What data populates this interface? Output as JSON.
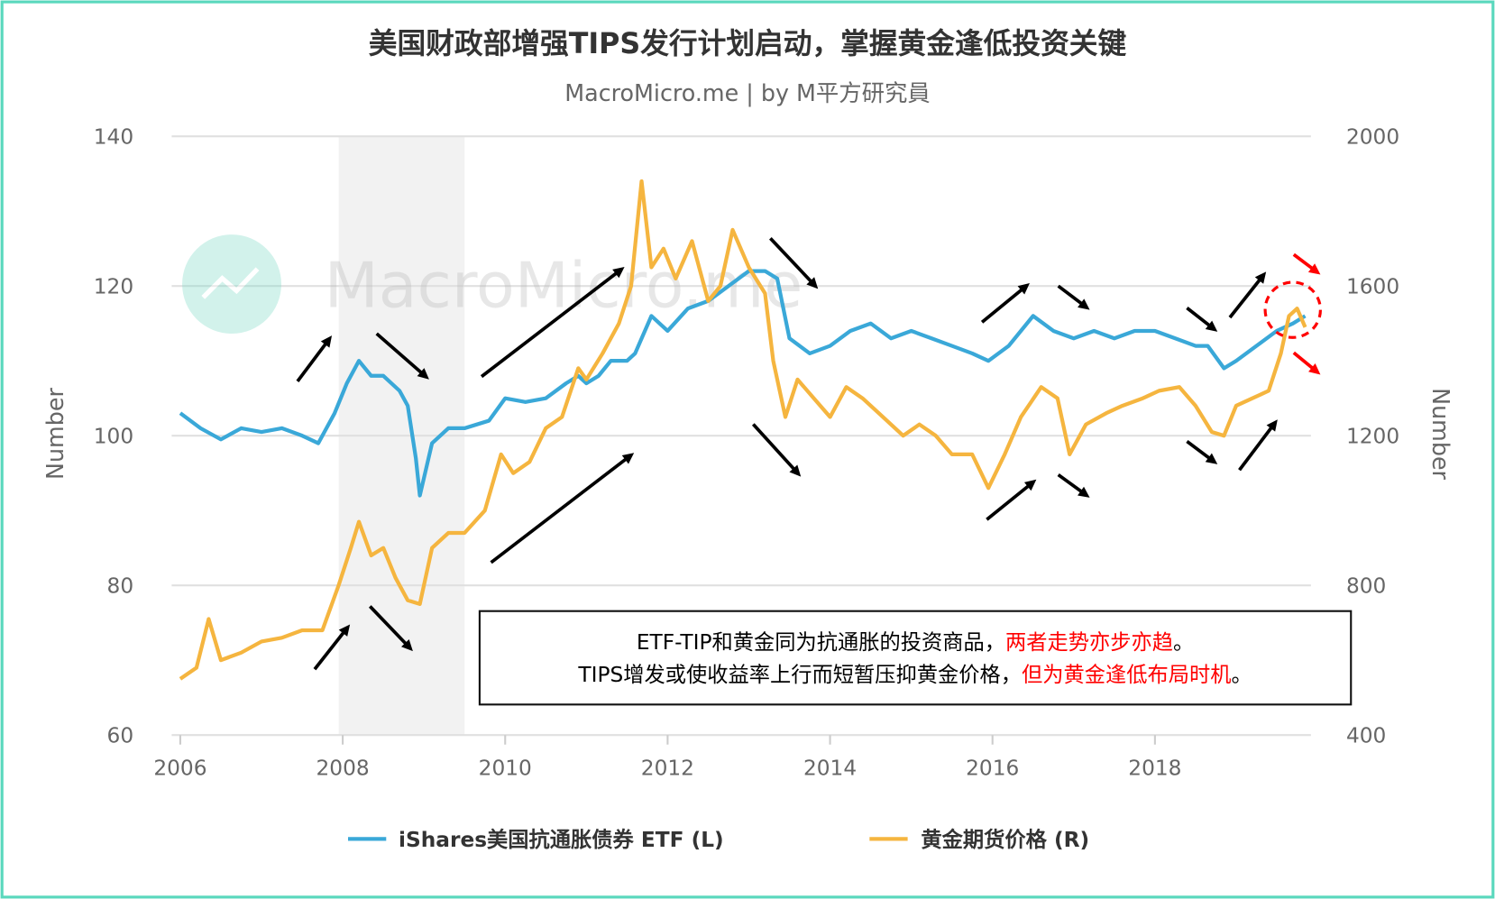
{
  "chart_data": {
    "type": "line",
    "title": "美国财政部增强TIPS发行计划启动，掌握黄金逢低投资关键",
    "subtitle": "MacroMicro.me | by M平方研究員",
    "watermark": "MacroMicro.me",
    "xlabel": "",
    "ylabel_left": "Number",
    "ylabel_right": "Number",
    "x_ticks": [
      "2006",
      "2008",
      "2010",
      "2012",
      "2014",
      "2016",
      "2018"
    ],
    "xlim": [
      2006,
      2019.9
    ],
    "ylim_left": [
      60,
      140
    ],
    "ylim_right": [
      400,
      2000
    ],
    "y_ticks_left": [
      "60",
      "80",
      "100",
      "120",
      "140"
    ],
    "y_ticks_right": [
      "400",
      "800",
      "1200",
      "1600",
      "2000"
    ],
    "grid": true,
    "legend_position": "bottom",
    "shaded_region": {
      "from": 2007.95,
      "to": 2009.5,
      "color": "#f2f2f2"
    },
    "series": [
      {
        "name": "iShares美国抗通胀债券 ETF (L)",
        "axis": "left",
        "color": "#3aa8d8",
        "x": [
          2006.0,
          2006.25,
          2006.5,
          2006.75,
          2007.0,
          2007.25,
          2007.5,
          2007.7,
          2007.9,
          2008.05,
          2008.2,
          2008.35,
          2008.5,
          2008.7,
          2008.8,
          2008.9,
          2008.95,
          2009.1,
          2009.3,
          2009.5,
          2009.8,
          2010.0,
          2010.25,
          2010.5,
          2010.75,
          2010.9,
          2011.0,
          2011.15,
          2011.3,
          2011.5,
          2011.6,
          2011.8,
          2012.0,
          2012.25,
          2012.5,
          2012.75,
          2013.0,
          2013.2,
          2013.35,
          2013.5,
          2013.75,
          2014.0,
          2014.25,
          2014.5,
          2014.75,
          2015.0,
          2015.25,
          2015.5,
          2015.75,
          2015.95,
          2016.2,
          2016.5,
          2016.75,
          2017.0,
          2017.25,
          2017.5,
          2017.75,
          2018.0,
          2018.25,
          2018.5,
          2018.65,
          2018.85,
          2019.0,
          2019.25,
          2019.5,
          2019.7,
          2019.85
        ],
        "values": [
          103,
          101,
          99.5,
          101,
          100.5,
          101,
          100,
          99,
          103,
          107,
          110,
          108,
          108,
          106,
          104,
          97,
          92,
          99,
          101,
          101,
          102,
          105,
          104.5,
          105,
          107,
          108,
          107,
          108,
          110,
          110,
          111,
          116,
          114,
          117,
          118,
          120,
          122,
          122,
          121,
          113,
          111,
          112,
          114,
          115,
          113,
          114,
          113,
          112,
          111,
          110,
          112,
          116,
          114,
          113,
          114,
          113,
          114,
          114,
          113,
          112,
          112,
          109,
          110,
          112,
          114,
          115,
          116
        ]
      },
      {
        "name": "黄金期货价格 (R)",
        "axis": "right",
        "color": "#f5b53f",
        "x": [
          2006.0,
          2006.2,
          2006.35,
          2006.5,
          2006.75,
          2007.0,
          2007.25,
          2007.5,
          2007.75,
          2007.95,
          2008.1,
          2008.2,
          2008.35,
          2008.5,
          2008.65,
          2008.8,
          2008.95,
          2009.1,
          2009.3,
          2009.5,
          2009.75,
          2009.95,
          2010.1,
          2010.3,
          2010.5,
          2010.7,
          2010.9,
          2011.0,
          2011.2,
          2011.4,
          2011.55,
          2011.68,
          2011.8,
          2011.95,
          2012.1,
          2012.3,
          2012.5,
          2012.65,
          2012.8,
          2013.0,
          2013.2,
          2013.3,
          2013.45,
          2013.6,
          2013.8,
          2014.0,
          2014.2,
          2014.4,
          2014.6,
          2014.9,
          2015.1,
          2015.3,
          2015.5,
          2015.75,
          2015.95,
          2016.15,
          2016.35,
          2016.6,
          2016.8,
          2016.95,
          2017.15,
          2017.4,
          2017.6,
          2017.85,
          2018.05,
          2018.3,
          2018.5,
          2018.7,
          2018.85,
          2019.0,
          2019.2,
          2019.4,
          2019.55,
          2019.65,
          2019.75,
          2019.85
        ],
        "values": [
          550,
          580,
          710,
          600,
          620,
          650,
          660,
          680,
          680,
          800,
          900,
          970,
          880,
          900,
          820,
          760,
          750,
          900,
          940,
          940,
          1000,
          1150,
          1100,
          1130,
          1220,
          1250,
          1380,
          1350,
          1420,
          1500,
          1600,
          1880,
          1650,
          1700,
          1620,
          1720,
          1560,
          1600,
          1750,
          1650,
          1580,
          1400,
          1250,
          1350,
          1300,
          1250,
          1330,
          1300,
          1260,
          1200,
          1230,
          1200,
          1150,
          1150,
          1060,
          1150,
          1250,
          1330,
          1300,
          1150,
          1230,
          1260,
          1280,
          1300,
          1320,
          1330,
          1280,
          1210,
          1200,
          1280,
          1300,
          1320,
          1420,
          1520,
          1540,
          1490
        ]
      }
    ],
    "annotation": {
      "line1_black": "ETF-TIP和黄金同为抗通胀的投资商品，",
      "line1_red": "两者走势亦步亦趋",
      "line1_end": "。",
      "line2_black": "TIPS增发或使收益率上行而短暂压抑黄金价格，",
      "line2_red": "但为黄金逢低布局时机",
      "line2_end": "。"
    },
    "colors": {
      "border": "#5ad8bd",
      "arrow": "#000000",
      "highlight": "#ff0000",
      "text": "#333333",
      "axis_text": "#666666"
    }
  }
}
